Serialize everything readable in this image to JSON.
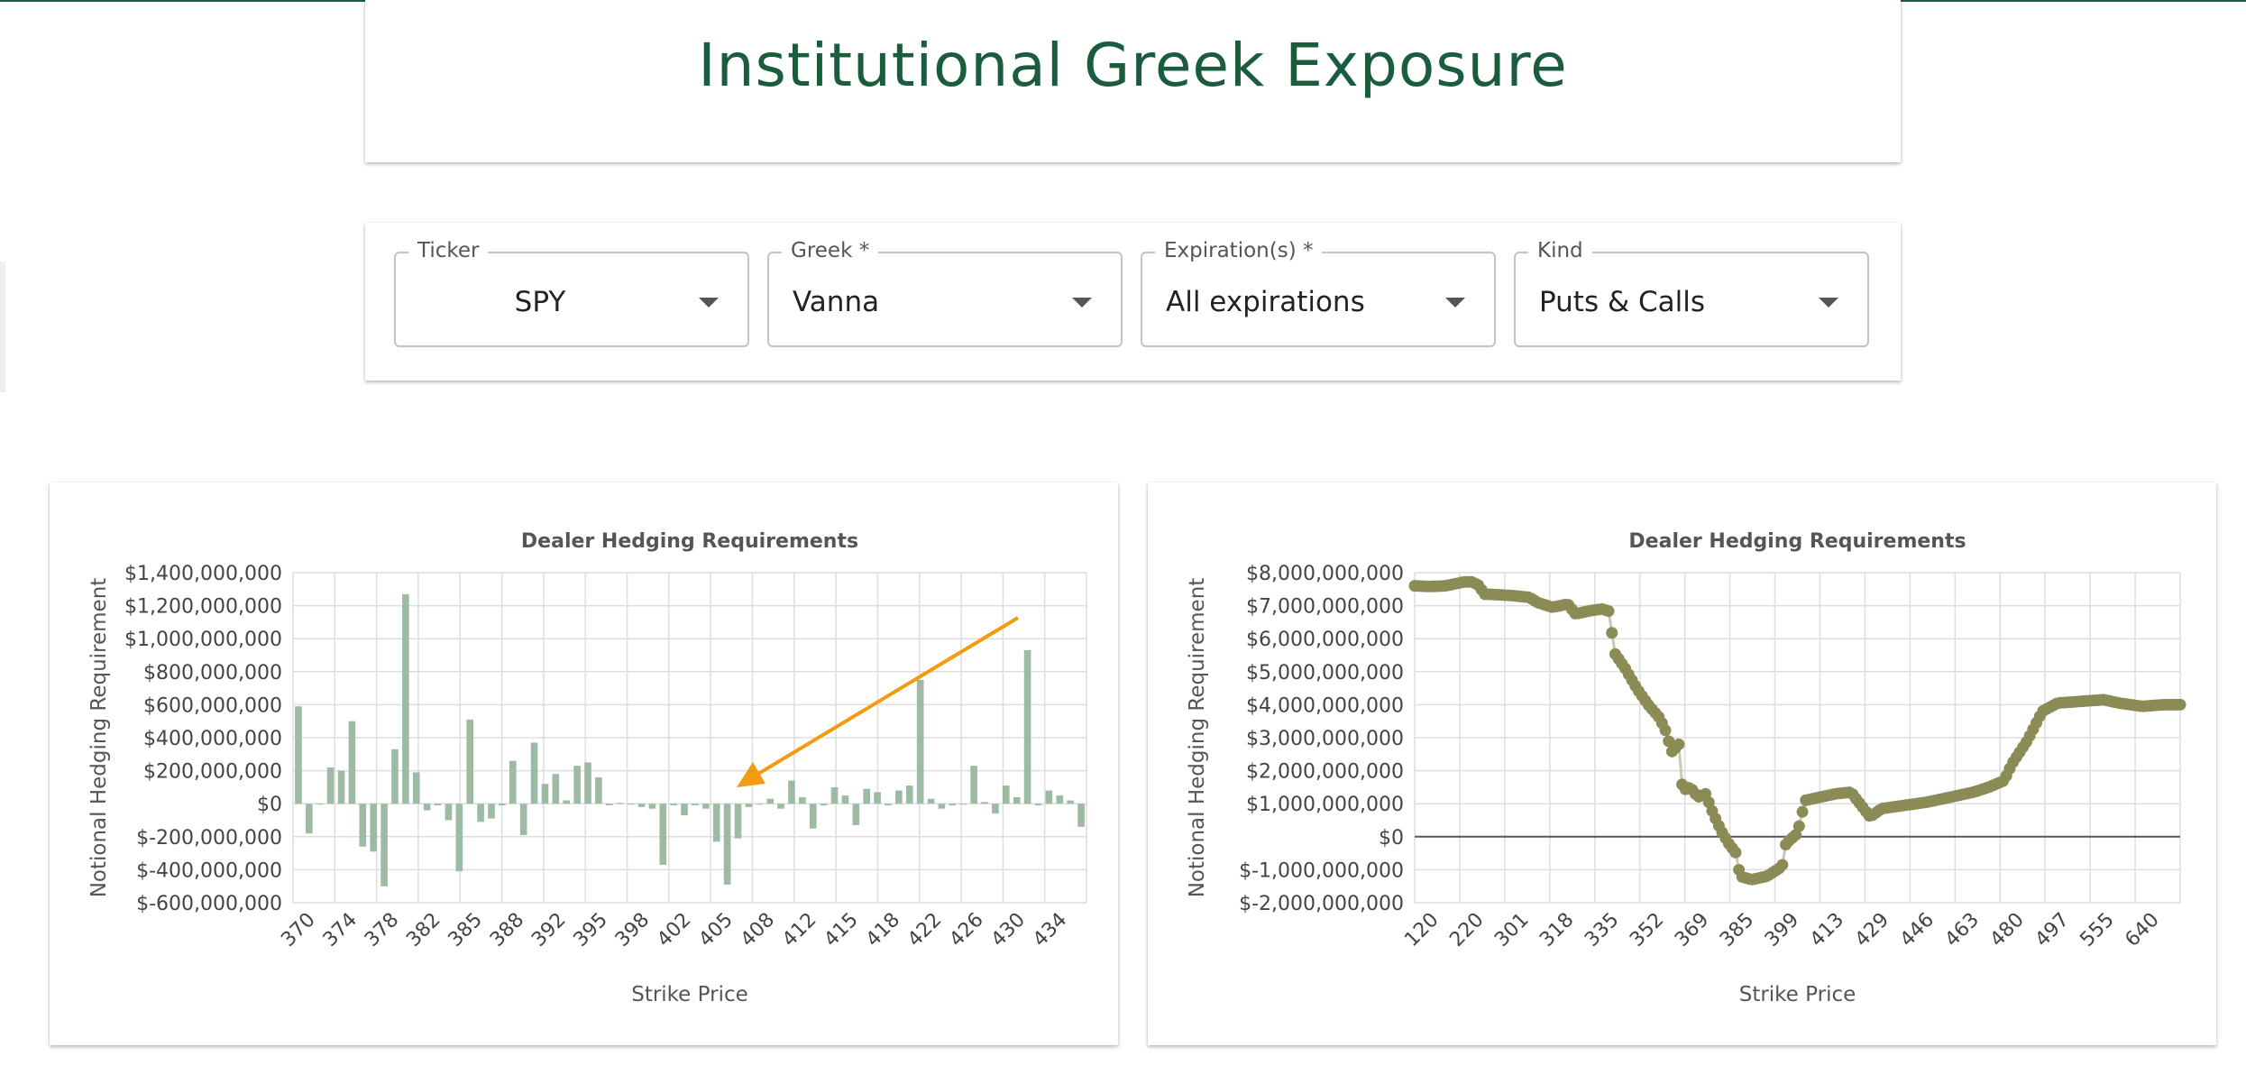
{
  "page": {
    "title": "Institutional Greek Exposure"
  },
  "filters": {
    "ticker": {
      "label": "Ticker",
      "value": "SPY"
    },
    "greek": {
      "label": "Greek *",
      "value": "Vanna"
    },
    "expirations": {
      "label": "Expiration(s) *",
      "value": "All expirations"
    },
    "kind": {
      "label": "Kind",
      "value": "Puts & Calls"
    }
  },
  "colors": {
    "brand": "#1a5c3e",
    "bar": "#9dbba3",
    "scatter": "#8b8b55",
    "arrow": "#f39c12"
  },
  "chart_data": [
    {
      "type": "bar",
      "title": "Dealer Hedging Requirements",
      "xlabel": "Strike Price",
      "ylabel": "Notional Hedging Requirement",
      "ylim": [
        -600000000,
        1400000000
      ],
      "ytick_labels": [
        "$1,400,000,000",
        "$1,200,000,000",
        "$1,000,000,000",
        "$800,000,000",
        "$600,000,000",
        "$400,000,000",
        "$200,000,000",
        "$0",
        "$-200,000,000",
        "$-400,000,000",
        "$-600,000,000"
      ],
      "ytick_values": [
        1400000000,
        1200000000,
        1000000000,
        800000000,
        600000000,
        400000000,
        200000000,
        0,
        -200000000,
        -400000000,
        -600000000
      ],
      "xtick_labels": [
        "370",
        "374",
        "378",
        "382",
        "385",
        "388",
        "392",
        "395",
        "398",
        "402",
        "405",
        "408",
        "412",
        "415",
        "418",
        "422",
        "426",
        "430",
        "434"
      ],
      "grid": true,
      "values": [
        590000000,
        -180000000,
        0,
        220000000,
        200000000,
        500000000,
        -260000000,
        -290000000,
        -500000000,
        330000000,
        1270000000,
        190000000,
        -40000000,
        -10000000,
        -100000000,
        -410000000,
        510000000,
        -110000000,
        -90000000,
        -10000000,
        260000000,
        -190000000,
        370000000,
        120000000,
        180000000,
        20000000,
        230000000,
        250000000,
        160000000,
        -10000000,
        5000000,
        -5000000,
        -20000000,
        -30000000,
        -370000000,
        -10000000,
        -70000000,
        -10000000,
        -30000000,
        -230000000,
        -490000000,
        -210000000,
        -20000000,
        -5000000,
        30000000,
        -30000000,
        140000000,
        40000000,
        -150000000,
        -10000000,
        100000000,
        50000000,
        -130000000,
        90000000,
        70000000,
        -10000000,
        80000000,
        110000000,
        750000000,
        30000000,
        -30000000,
        -10000000,
        -5000000,
        230000000,
        10000000,
        -60000000,
        110000000,
        40000000,
        930000000,
        -10000000,
        80000000,
        50000000,
        20000000,
        -140000000
      ],
      "annotation": "arrow"
    },
    {
      "type": "scatter",
      "title": "Dealer Hedging Requirements",
      "xlabel": "Strike Price",
      "ylabel": "Notional Hedging Requirement",
      "ylim": [
        -2000000000,
        8000000000
      ],
      "ytick_labels": [
        "$8,000,000,000",
        "$7,000,000,000",
        "$6,000,000,000",
        "$5,000,000,000",
        "$4,000,000,000",
        "$3,000,000,000",
        "$2,000,000,000",
        "$1,000,000,000",
        "$0",
        "$-1,000,000,000",
        "$-2,000,000,000"
      ],
      "ytick_values": [
        8000000000,
        7000000000,
        6000000000,
        5000000000,
        4000000000,
        3000000000,
        2000000000,
        1000000000,
        0,
        -1000000000,
        -2000000000
      ],
      "xtick_labels": [
        "120",
        "220",
        "301",
        "318",
        "335",
        "352",
        "369",
        "385",
        "399",
        "413",
        "429",
        "446",
        "463",
        "480",
        "497",
        "555",
        "640"
      ],
      "grid": true,
      "zero_line": true,
      "profile": [
        [
          0.0,
          7.6
        ],
        [
          0.02,
          7.58
        ],
        [
          0.04,
          7.6
        ],
        [
          0.065,
          7.72
        ],
        [
          0.075,
          7.72
        ],
        [
          0.085,
          7.6
        ],
        [
          0.09,
          7.35
        ],
        [
          0.11,
          7.33
        ],
        [
          0.13,
          7.3
        ],
        [
          0.15,
          7.25
        ],
        [
          0.16,
          7.1
        ],
        [
          0.18,
          6.95
        ],
        [
          0.2,
          7.05
        ],
        [
          0.21,
          6.75
        ],
        [
          0.23,
          6.85
        ],
        [
          0.245,
          6.9
        ],
        [
          0.255,
          6.82
        ],
        [
          0.26,
          5.6
        ],
        [
          0.275,
          5.1
        ],
        [
          0.29,
          4.5
        ],
        [
          0.305,
          4.0
        ],
        [
          0.32,
          3.6
        ],
        [
          0.33,
          3.1
        ],
        [
          0.335,
          2.55
        ],
        [
          0.345,
          2.8
        ],
        [
          0.35,
          1.4
        ],
        [
          0.36,
          1.5
        ],
        [
          0.37,
          1.2
        ],
        [
          0.38,
          1.3
        ],
        [
          0.39,
          0.7
        ],
        [
          0.4,
          0.2
        ],
        [
          0.41,
          -0.2
        ],
        [
          0.42,
          -0.5
        ],
        [
          0.425,
          -1.2
        ],
        [
          0.44,
          -1.3
        ],
        [
          0.46,
          -1.2
        ],
        [
          0.48,
          -0.9
        ],
        [
          0.485,
          -0.2
        ],
        [
          0.5,
          0.1
        ],
        [
          0.51,
          1.1
        ],
        [
          0.53,
          1.2
        ],
        [
          0.55,
          1.3
        ],
        [
          0.57,
          1.35
        ],
        [
          0.58,
          1.05
        ],
        [
          0.595,
          0.6
        ],
        [
          0.61,
          0.85
        ],
        [
          0.64,
          0.95
        ],
        [
          0.67,
          1.05
        ],
        [
          0.7,
          1.2
        ],
        [
          0.73,
          1.35
        ],
        [
          0.75,
          1.5
        ],
        [
          0.77,
          1.7
        ],
        [
          0.78,
          2.2
        ],
        [
          0.8,
          2.9
        ],
        [
          0.82,
          3.8
        ],
        [
          0.84,
          4.05
        ],
        [
          0.87,
          4.1
        ],
        [
          0.9,
          4.15
        ],
        [
          0.92,
          4.05
        ],
        [
          0.95,
          3.95
        ],
        [
          0.98,
          4.0
        ],
        [
          1.0,
          4.0
        ]
      ]
    }
  ]
}
